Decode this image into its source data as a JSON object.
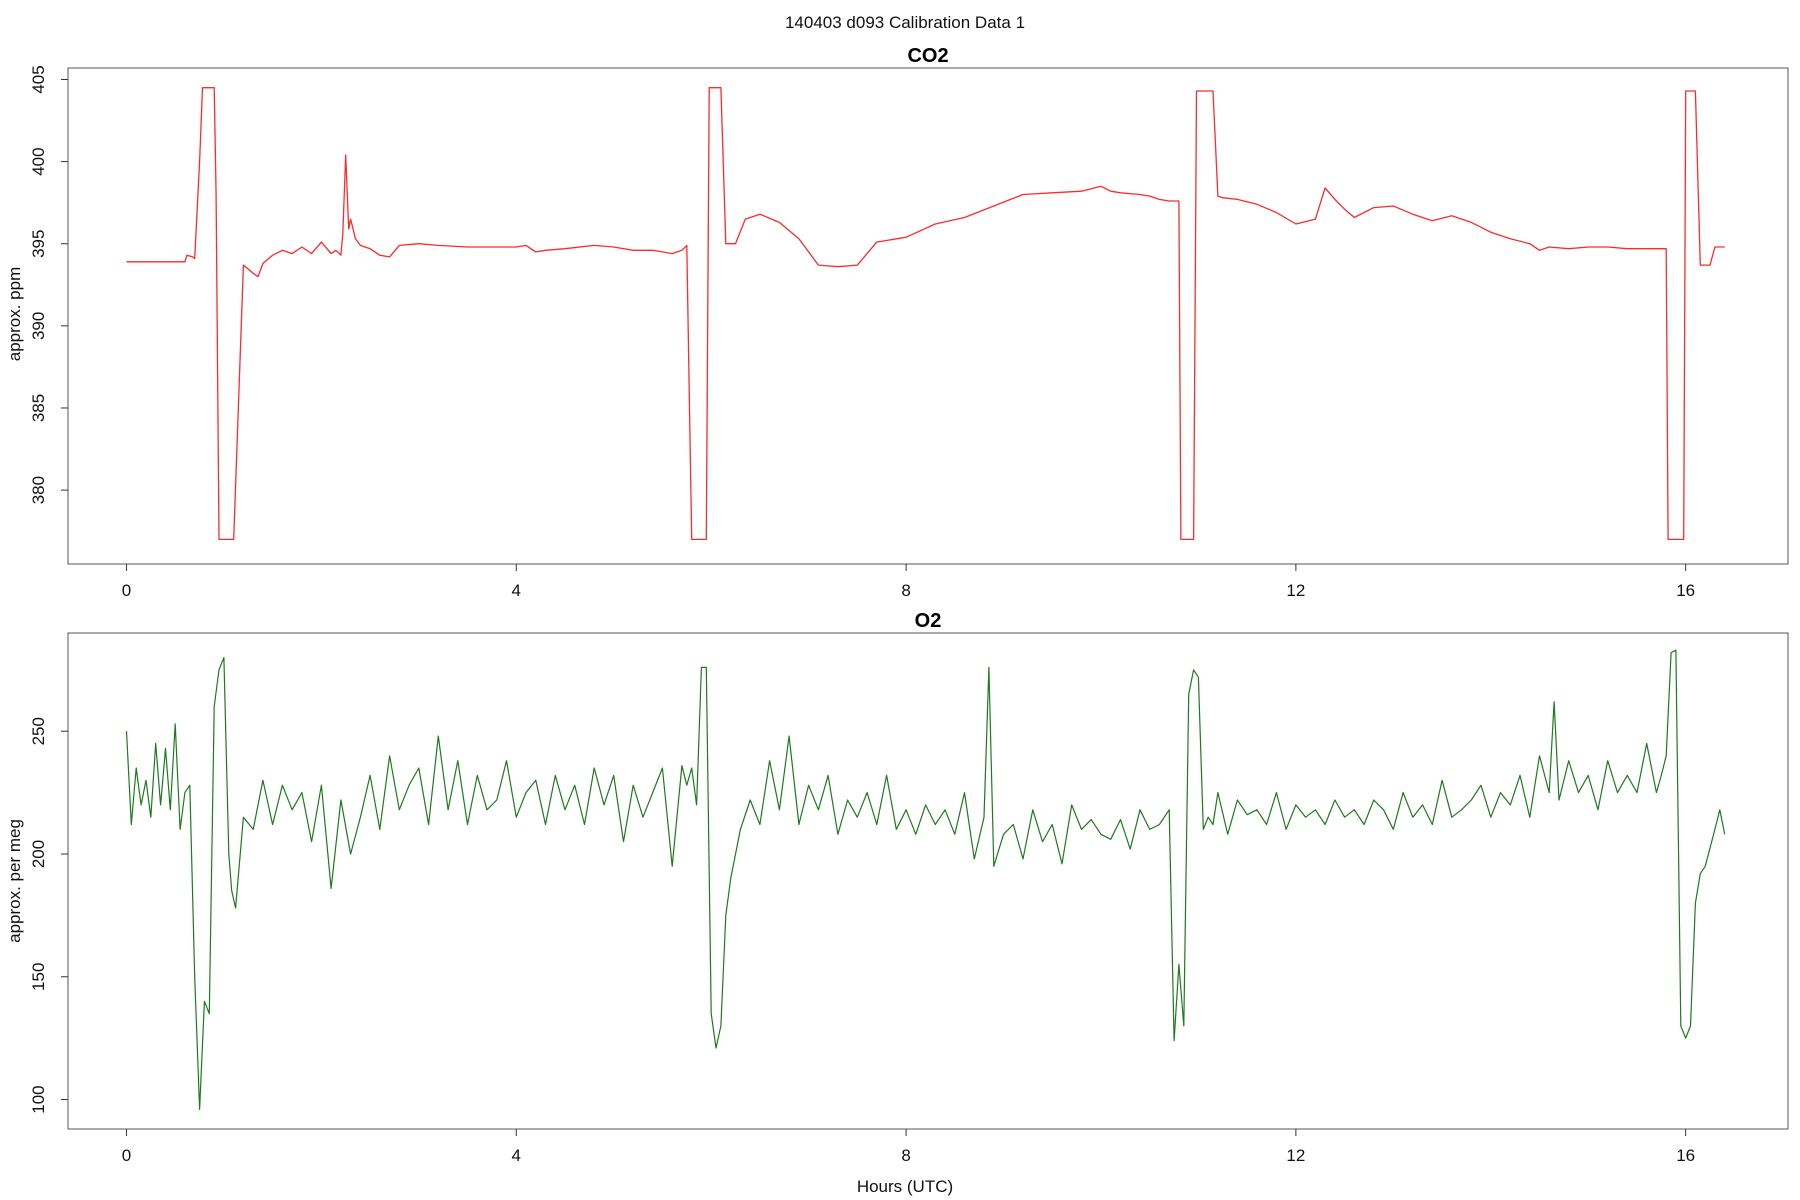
{
  "figure": {
    "title": "140403   d093   Calibration Data 1"
  },
  "chart_data": [
    {
      "type": "line",
      "title": "CO2",
      "xlabel": "",
      "ylabel": "approx. ppm",
      "xlim": [
        -0.6,
        17.05
      ],
      "ylim": [
        375.5,
        405.7
      ],
      "xticks": [
        0,
        4,
        8,
        12,
        16
      ],
      "yticks": [
        380,
        385,
        390,
        395,
        400,
        405
      ],
      "color": "#ff2a2a",
      "series": [
        {
          "x": [
            0,
            0.3,
            0.6,
            0.62,
            0.68,
            0.7,
            0.75,
            0.78,
            0.8,
            0.9,
            0.92,
            0.95,
            1.07,
            1.1,
            1.2,
            1.3,
            1.35,
            1.4,
            1.5,
            1.6,
            1.7,
            1.8,
            1.9,
            2.0,
            2.1,
            2.15,
            2.2,
            2.22,
            2.25,
            2.28,
            2.3,
            2.35,
            2.4,
            2.5,
            2.6,
            2.7,
            2.8,
            3.0,
            3.2,
            3.5,
            4.0,
            4.1,
            4.2,
            4.3,
            4.5,
            4.8,
            5.0,
            5.2,
            5.4,
            5.5,
            5.6,
            5.7,
            5.75,
            5.8,
            5.83,
            5.95,
            5.98,
            6.02,
            6.05,
            6.1,
            6.15,
            6.18,
            6.25,
            6.35,
            6.5,
            6.7,
            6.9,
            7.1,
            7.3,
            7.5,
            7.7,
            8.0,
            8.3,
            8.6,
            8.9,
            9.2,
            9.5,
            9.8,
            10.0,
            10.1,
            10.2,
            10.4,
            10.5,
            10.6,
            10.7,
            10.8,
            10.82,
            10.85,
            10.95,
            10.98,
            11.02,
            11.05,
            11.15,
            11.2,
            11.25,
            11.4,
            11.6,
            11.8,
            12.0,
            12.2,
            12.3,
            12.4,
            12.5,
            12.6,
            12.8,
            13.0,
            13.2,
            13.4,
            13.6,
            13.8,
            14.0,
            14.2,
            14.4,
            14.5,
            14.6,
            14.8,
            15.0,
            15.2,
            15.4,
            15.6,
            15.8,
            15.82,
            15.85,
            15.98,
            16.0,
            16.05,
            16.1,
            16.15,
            16.25,
            16.3,
            16.4
          ],
          "y": [
            393.9,
            393.9,
            393.9,
            394.3,
            394.2,
            394.1,
            400,
            404.5,
            404.5,
            404.5,
            398,
            377,
            377,
            377,
            393.7,
            393.2,
            393,
            393.8,
            394.3,
            394.6,
            394.4,
            394.8,
            394.4,
            395.1,
            394.4,
            394.6,
            394.3,
            395.6,
            400.4,
            395.9,
            396.5,
            395.3,
            394.9,
            394.7,
            394.3,
            394.2,
            394.9,
            395,
            394.9,
            394.8,
            394.8,
            394.9,
            394.5,
            394.6,
            394.7,
            394.9,
            394.8,
            394.6,
            394.6,
            394.5,
            394.4,
            394.6,
            394.9,
            377,
            377,
            377,
            404.5,
            404.5,
            404.5,
            404.5,
            395,
            395,
            395,
            396.5,
            396.8,
            396.3,
            395.3,
            393.7,
            393.6,
            393.7,
            395.1,
            395.4,
            396.2,
            396.6,
            397.3,
            398,
            398.1,
            398.2,
            398.5,
            398.2,
            398.1,
            398,
            397.9,
            397.7,
            397.6,
            397.6,
            377,
            377,
            377,
            404.3,
            404.3,
            404.3,
            404.3,
            397.9,
            397.8,
            397.7,
            397.4,
            396.9,
            396.2,
            396.5,
            398.4,
            397.7,
            397.1,
            396.6,
            397.2,
            397.3,
            396.8,
            396.4,
            396.7,
            396.3,
            395.7,
            395.3,
            395,
            394.6,
            394.8,
            394.7,
            394.8,
            394.8,
            394.7,
            394.7,
            394.7,
            377,
            377,
            377,
            404.3,
            404.3,
            404.3,
            393.7,
            393.7,
            394.8,
            394.8
          ]
        }
      ]
    },
    {
      "type": "line",
      "title": "O2",
      "xlabel": "Hours (UTC)",
      "ylabel": "approx. per meg",
      "xlim": [
        -0.6,
        17.05
      ],
      "ylim": [
        88,
        290
      ],
      "xticks": [
        0,
        4,
        8,
        12,
        16
      ],
      "yticks": [
        100,
        150,
        200,
        250
      ],
      "color": "#1e7a1e",
      "series": [
        {
          "x": [
            0,
            0.05,
            0.1,
            0.15,
            0.2,
            0.25,
            0.3,
            0.35,
            0.4,
            0.45,
            0.5,
            0.55,
            0.6,
            0.65,
            0.7,
            0.75,
            0.8,
            0.85,
            0.9,
            0.95,
            1.0,
            1.05,
            1.08,
            1.12,
            1.2,
            1.3,
            1.4,
            1.5,
            1.6,
            1.7,
            1.8,
            1.9,
            2.0,
            2.1,
            2.2,
            2.3,
            2.4,
            2.5,
            2.6,
            2.7,
            2.8,
            2.9,
            3.0,
            3.1,
            3.2,
            3.3,
            3.4,
            3.5,
            3.6,
            3.7,
            3.8,
            3.9,
            4.0,
            4.1,
            4.2,
            4.3,
            4.4,
            4.5,
            4.6,
            4.7,
            4.8,
            4.9,
            5.0,
            5.1,
            5.2,
            5.3,
            5.4,
            5.5,
            5.6,
            5.7,
            5.75,
            5.8,
            5.85,
            5.9,
            5.95,
            6.0,
            6.05,
            6.1,
            6.15,
            6.2,
            6.3,
            6.4,
            6.5,
            6.6,
            6.7,
            6.8,
            6.9,
            7.0,
            7.1,
            7.2,
            7.3,
            7.4,
            7.5,
            7.6,
            7.7,
            7.8,
            7.9,
            8.0,
            8.1,
            8.2,
            8.3,
            8.4,
            8.5,
            8.6,
            8.7,
            8.8,
            8.85,
            8.9,
            9.0,
            9.1,
            9.2,
            9.3,
            9.4,
            9.5,
            9.6,
            9.7,
            9.8,
            9.9,
            10.0,
            10.1,
            10.2,
            10.3,
            10.4,
            10.5,
            10.6,
            10.7,
            10.75,
            10.8,
            10.85,
            10.9,
            10.95,
            11.0,
            11.05,
            11.1,
            11.15,
            11.2,
            11.3,
            11.4,
            11.5,
            11.6,
            11.7,
            11.8,
            11.9,
            12.0,
            12.1,
            12.2,
            12.3,
            12.4,
            12.5,
            12.6,
            12.7,
            12.8,
            12.9,
            13.0,
            13.1,
            13.2,
            13.3,
            13.4,
            13.5,
            13.6,
            13.7,
            13.8,
            13.9,
            14.0,
            14.1,
            14.2,
            14.3,
            14.4,
            14.5,
            14.6,
            14.65,
            14.7,
            14.8,
            14.9,
            15.0,
            15.1,
            15.2,
            15.3,
            15.4,
            15.5,
            15.6,
            15.7,
            15.75,
            15.8,
            15.85,
            15.9,
            15.95,
            16.0,
            16.05,
            16.1,
            16.15,
            16.2,
            16.3,
            16.35,
            16.4
          ],
          "y": [
            250,
            212,
            235,
            220,
            230,
            215,
            245,
            220,
            243,
            218,
            253,
            210,
            225,
            228,
            150,
            96,
            140,
            135,
            260,
            275,
            280,
            200,
            185,
            178,
            215,
            210,
            230,
            212,
            228,
            218,
            225,
            205,
            228,
            186,
            222,
            200,
            215,
            232,
            210,
            240,
            218,
            228,
            235,
            212,
            248,
            218,
            238,
            212,
            232,
            218,
            222,
            238,
            215,
            225,
            230,
            212,
            232,
            218,
            228,
            212,
            235,
            220,
            232,
            205,
            228,
            215,
            225,
            235,
            195,
            236,
            228,
            235,
            220,
            276,
            276,
            135,
            121,
            130,
            175,
            190,
            210,
            222,
            212,
            238,
            218,
            248,
            212,
            228,
            218,
            232,
            208,
            222,
            215,
            225,
            212,
            232,
            210,
            218,
            208,
            220,
            212,
            218,
            208,
            225,
            198,
            215,
            276,
            195,
            208,
            212,
            198,
            218,
            205,
            212,
            196,
            220,
            210,
            214,
            208,
            206,
            214,
            202,
            218,
            210,
            212,
            218,
            124,
            155,
            130,
            265,
            275,
            272,
            210,
            215,
            212,
            225,
            208,
            222,
            216,
            218,
            212,
            225,
            210,
            220,
            215,
            218,
            212,
            222,
            215,
            218,
            212,
            222,
            218,
            210,
            225,
            215,
            220,
            212,
            230,
            215,
            218,
            222,
            228,
            215,
            225,
            220,
            232,
            215,
            240,
            225,
            262,
            222,
            238,
            225,
            232,
            218,
            238,
            225,
            232,
            225,
            245,
            225,
            232,
            240,
            282,
            283,
            130,
            125,
            130,
            180,
            192,
            195,
            210,
            218,
            208
          ]
        }
      ]
    }
  ]
}
